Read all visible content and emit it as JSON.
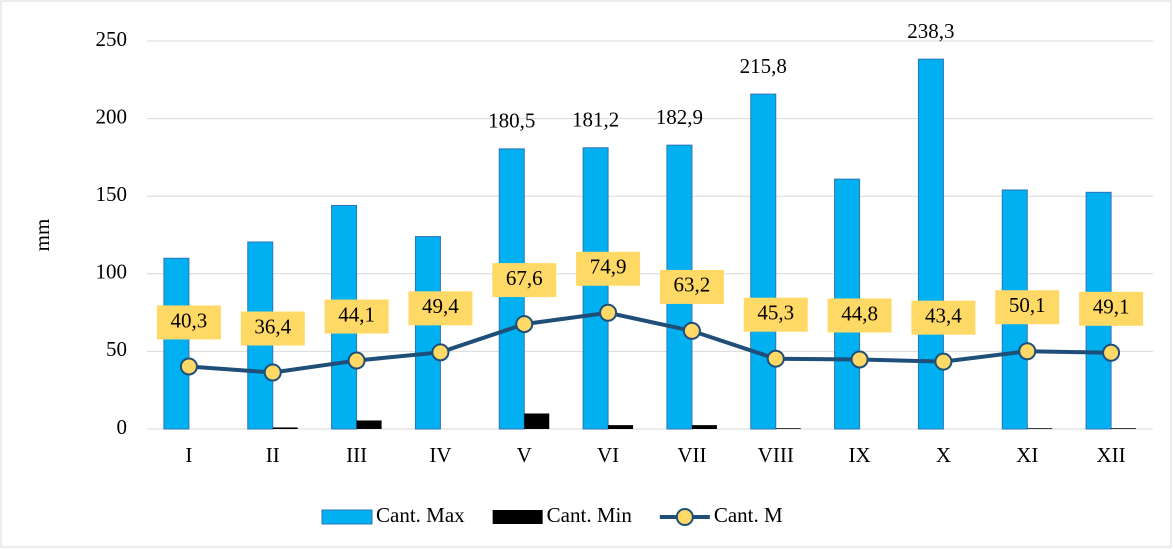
{
  "chart_data": {
    "type": "bar-line",
    "y_label": "mm",
    "categories": [
      "I",
      "II",
      "III",
      "IV",
      "V",
      "VI",
      "VII",
      "VIII",
      "IX",
      "X",
      "XI",
      "XII"
    ],
    "series": [
      {
        "name": "Cant. Max",
        "type": "bar",
        "color": "#00b0f0",
        "values": [
          110,
          120.5,
          144,
          124,
          180.5,
          181.2,
          182.9,
          215.8,
          161,
          238.3,
          154,
          152.5
        ],
        "value_labels": [
          null,
          null,
          null,
          null,
          "180,5",
          "181,2",
          "182,9",
          "215,8",
          null,
          "238,3",
          null,
          null
        ]
      },
      {
        "name": "Cant. Min",
        "type": "bar",
        "color": "#000000",
        "values": [
          0,
          1,
          5.5,
          0,
          10,
          2.5,
          2.5,
          0.5,
          0,
          0,
          0.5,
          0.5
        ]
      },
      {
        "name": "Cant. M",
        "type": "line",
        "color": "#1f4e79",
        "values": [
          40.3,
          36.4,
          44.1,
          49.4,
          67.6,
          74.9,
          63.2,
          45.3,
          44.8,
          43.4,
          50.1,
          49.1
        ],
        "value_labels": [
          "40,3",
          "36,4",
          "44,1",
          "49,4",
          "67,6",
          "74,9",
          "63,2",
          "45,3",
          "44,8",
          "43,4",
          "50,1",
          "49,1"
        ]
      }
    ],
    "ylim": [
      0,
      250
    ],
    "yticks": [
      0,
      50,
      100,
      150,
      200,
      250
    ],
    "grid": true,
    "legend": "bottom"
  }
}
